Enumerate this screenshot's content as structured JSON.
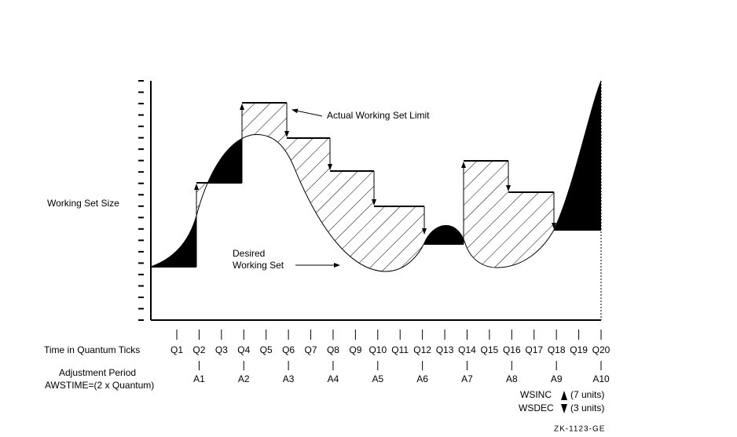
{
  "y_axis_label": "Working Set Size",
  "annotations": {
    "limit": "Actual Working Set Limit",
    "desired_line1": "Desired",
    "desired_line2": "Working Set"
  },
  "time_axis": {
    "label": "Time in Quantum Ticks",
    "ticks": [
      "Q1",
      "Q2",
      "Q3",
      "Q4",
      "Q5",
      "Q6",
      "Q7",
      "Q8",
      "Q9",
      "Q10",
      "Q11",
      "Q12",
      "Q13",
      "Q14",
      "Q15",
      "Q16",
      "Q17",
      "Q18",
      "Q19",
      "Q20"
    ]
  },
  "adjustment": {
    "label_line1": "Adjustment Period",
    "label_line2": "AWSTIME=(2 x Quantum)",
    "periods": [
      "A1",
      "A2",
      "A3",
      "A4",
      "A5",
      "A6",
      "A7",
      "A8",
      "A9",
      "A10"
    ]
  },
  "legend": {
    "inc_name": "WSINC",
    "inc_units": "(7 units)",
    "dec_name": "WSDEC",
    "dec_units": "(3 units)"
  },
  "figure_id": "ZK-1123-GE"
}
